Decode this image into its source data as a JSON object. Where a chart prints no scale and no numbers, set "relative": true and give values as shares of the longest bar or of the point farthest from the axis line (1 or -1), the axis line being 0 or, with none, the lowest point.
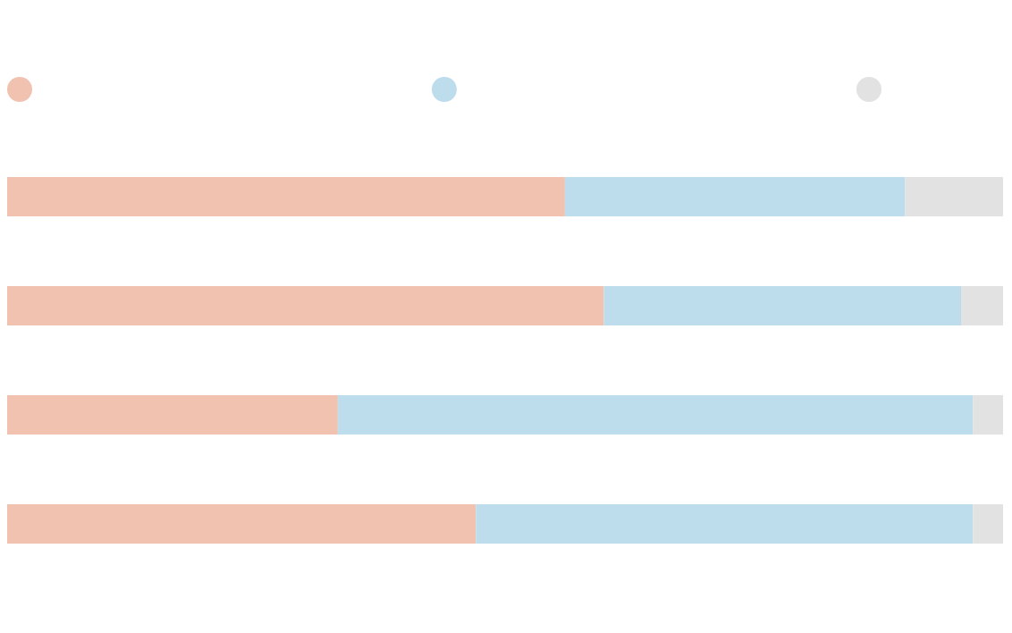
{
  "chart_data": {
    "type": "bar",
    "orientation": "horizontal",
    "stacked": true,
    "relative": true,
    "categories": [
      null,
      null,
      null,
      null
    ],
    "series": [
      {
        "color": "#f1c2b0",
        "values": [
          0.562,
          0.601,
          0.335,
          0.473
        ]
      },
      {
        "color": "#bddcec",
        "values": [
          0.34,
          0.357,
          0.635,
          0.497
        ]
      },
      {
        "color": "#e2e2e2",
        "values": [
          0.098,
          0.042,
          0.03,
          0.03
        ]
      }
    ]
  }
}
